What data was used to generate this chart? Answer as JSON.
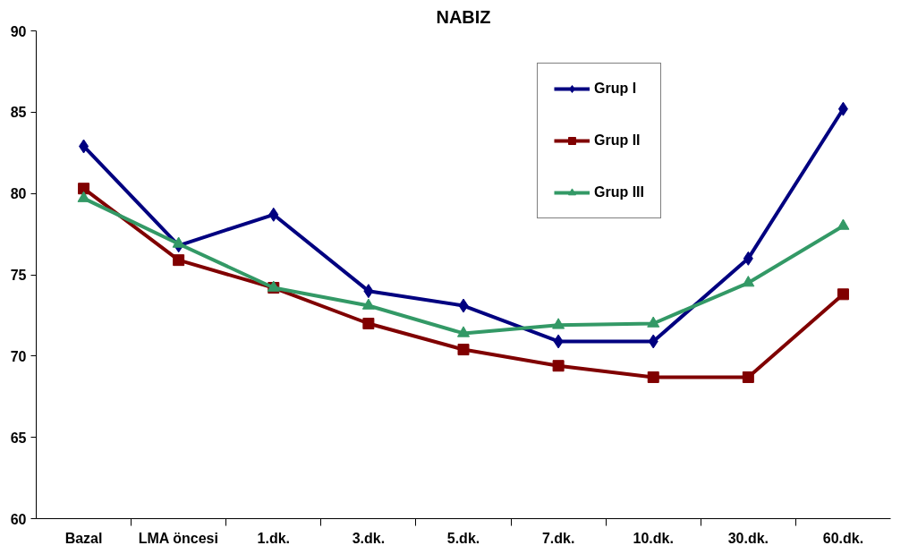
{
  "chart_data": {
    "type": "line",
    "title": "NABIZ",
    "categories": [
      "Bazal",
      "LMA öncesi",
      "1.dk.",
      "3.dk.",
      "5.dk.",
      "7.dk.",
      "10.dk.",
      "30.dk.",
      "60.dk."
    ],
    "series": [
      {
        "name": "Grup I",
        "color": "#000080",
        "marker": "diamond",
        "values": [
          82.9,
          76.8,
          78.7,
          74.0,
          73.1,
          70.9,
          70.9,
          76.0,
          85.2
        ]
      },
      {
        "name": "Grup II",
        "color": "#800000",
        "marker": "square",
        "values": [
          80.3,
          75.9,
          74.2,
          72.0,
          70.4,
          69.4,
          68.7,
          68.7,
          73.8
        ]
      },
      {
        "name": "Grup III",
        "color": "#339966",
        "marker": "triangle",
        "values": [
          79.7,
          76.9,
          74.2,
          73.1,
          71.4,
          71.9,
          72.0,
          74.5,
          78.0
        ]
      }
    ],
    "ylim": [
      60,
      90
    ],
    "yticks": [
      60,
      65,
      70,
      75,
      80,
      85,
      90
    ],
    "grid": false,
    "legend": "top right",
    "line_style": "solid"
  }
}
